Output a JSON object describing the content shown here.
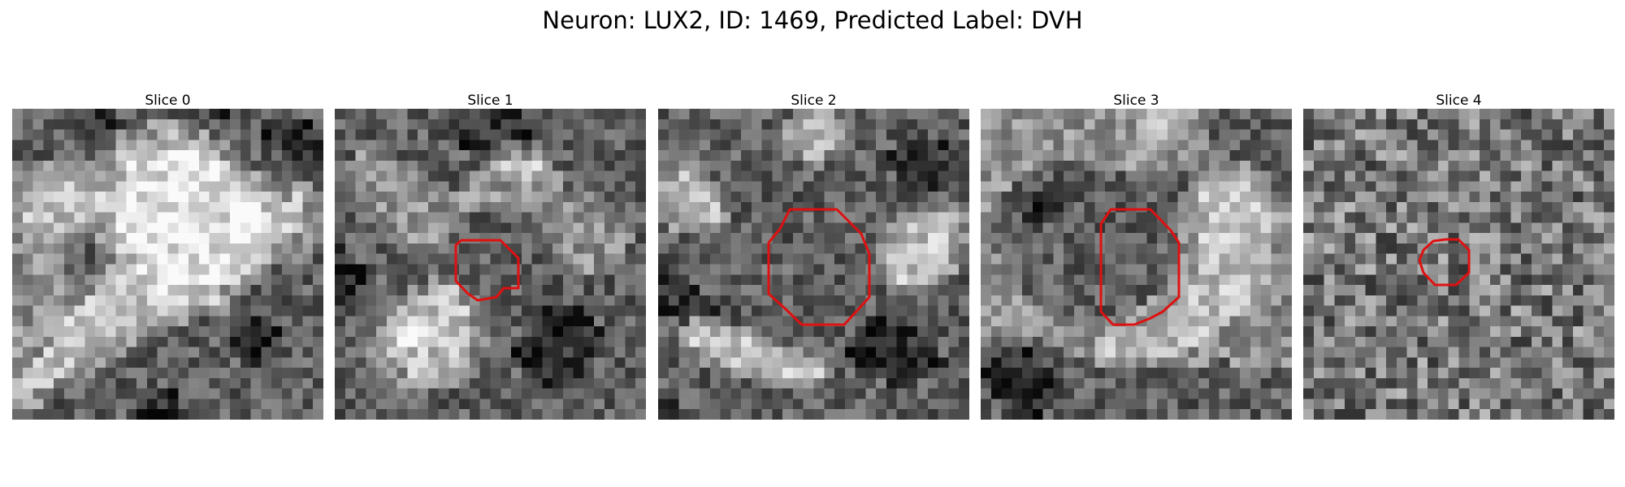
{
  "figure": {
    "title": "Neuron: LUX2, ID: 1469, Predicted Label: DVH",
    "contour_color": "#e01010",
    "colormap": "grayscale"
  },
  "panels": [
    {
      "title": "Slice 0",
      "image": "grayscale-microscopy-patch",
      "has_roi_contour": false,
      "brightness": [
        "bbbbbbbbaabbbbbbbbbaabbbbbbbbb",
        "bbbbbbbbbaabbcccbbbbbbbbaaaaab",
        "bbbbbbbbbbccccdddccbbbbbaaaaaa",
        "bbbbbbbbbbccdddddddccbbbaaaaaa",
        "bbbbbbbbbcddeeeeeeedccbbbbaaaa",
        "ccccccccccdeeeeeeeeedccbbbbbaa",
        "cccccccccddeeeeeeeeeeddcbbbbbb",
        "cccdcdcccdeeeeeeeeeeeedccccccb",
        "ccddddddddeeeeeeeeeeeeeddccdcc",
        "ccddddddddeeeeeeeeeeeeeeddddcc",
        "cdddddddddeeeeeeeeeeeeeeedddcc",
        "ccddddcbcdeeeeeeeeeeeeeeddddcc",
        "cccdccbbccdeeeeeeeeeeeeedddccc",
        "ccccbbbbbcdeeeeeeeeeeeeddccccb",
        "cccccbbbccddeeeeeeeeeedddcccbb",
        "cccccbbbcdddeeeeeeeeeddccbbbbb",
        "cccccccccddddeeeeeeeddccbbbbbb",
        "ccccccccdddddeeeedddccbbbbbbbb",
        "cccccccdddddddddddddcbbbbbbbbb",
        "ccccccddddddddddcccccbbbbbbbbb",
        "cccccddddddddccccbbbbbaabbbbbb",
        "ccccdddddddccccbbbbbbaaaaabbbb",
        "ccccdddddccccbbbbbbbaaaaaabbbb",
        "cccdddddcccbbbbbbbbbbaaaaabbbb",
        "ccdddddcccbbbbbbbbbbbbaabbbbbb",
        "cdddddccbbbbbbbbbbbbbbbbbbbbbb",
        "ddddccbbbbbbbbbbbbbbbbbbbbbbbb",
        "ddccbbbbbbbbbbaabbbbbbbbbbbbbb",
        "dccbbbbbbbbbaaaabbbbbbbbbbbbbb",
        "ccbbbbbbbbbbaaaabbbbbbbbbbbbbb"
      ]
    },
    {
      "title": "Slice 1",
      "image": "grayscale-microscopy-patch",
      "has_roi_contour": true,
      "brightness": [
        "bbbbbbbbbbbbaaaaaabbbbbbbbbbbb",
        "bbbbbbbbbbbaaaaaaaabbbbbbbbbbb",
        "bbbbbbbbbbbaaaaaaaaabbbbbbbbbb",
        "bbbbbbbbbbbbaaabbbbbbbbbbbbbbb",
        "bbcccbbbbbbbbbbcccccbbbbbbbbbb",
        "bcccccbbbbbbbbccddddcbbbbbbbbb",
        "bcccccccbbbbbcccddddccbbbbbbbb",
        "bbccccccccbbbcccccccccbbbbbbbb",
        "bbbccccccccccccccccccccccbbbbb",
        "bbbbccccccccccccccccccccccbbbb",
        "bbbbbcccccccbbbbbbbccccccccbbb",
        "bbbbbbcccccbbbbbbbbbccccccccbb",
        "bbbbbbbccccbbbbbbbbbcccccccccb",
        "abbbbbbbbbbbbbbbbbbbbcccccccbb",
        "aabbbbbbbbbbbbbbbbbbbbccccccbb",
        "aaabbbbbbbbbbbbbbbbbbbbbcccbbb",
        "aaabbbbbbcccbbbbbbbbbbbbbbbbbb",
        "aabbbbbcccddcbbbbbbbbbbbbbbbbb",
        "abbbbbcdddddccbbbbbbbbbbbbbbbb",
        "bbbbbcdddddddcbbbbbbaaaabbbbbb",
        "bbbbcddeeddddccbbbbaaaaaabbbbb",
        "bbbbcdeeeddddccbbbbaaaaaaabbbb",
        "bbbccdeeeddddccbbbaaaaaaaabbbb",
        "bbbccdddddddcccbbaaaaaaaaabbbb",
        "bbbbccddddddccbbbaaaaaaaabbbbb",
        "bbbbbccdddddcbbbbbaaaaaabbbbbb",
        "bbbbbbccccccbbbbbbbaaabbbbbbbb",
        "bbbbbbbbbbbbbbbbbbbbbbbbbbbbbb",
        "bbbbbbbbbbbbbbbbbbbbbbbbbbbbbb",
        "bbbbbbbbbbbbbbbbbbbbbbbbbbbbbb"
      ]
    },
    {
      "title": "Slice 2",
      "image": "grayscale-microscopy-patch",
      "has_roi_contour": true,
      "brightness": [
        "bbbbbbbbbbbbbccccbbbbbbbbbbbbb",
        "bbbbbbbbbbbbccdddccbbbbbbbbbbb",
        "bbbbbbbbbbbccddddccbbbbbbbbbbb",
        "bbbbbbbbbbbccddddccbbbbaaaaabb",
        "bbbbbbbbbbbbccddccbbbbaaaaaaab",
        "bcccbbbbbbbbbbccbbbbbbaaaaaaab",
        "ccddcbbbbbbbbbbbbbbbbbbaaaaabb",
        "cdddccbbbbbbbbbbbbbbbbbbaaabbb",
        "cddddccbbbbbbbbbbbbbbbbbbbbbbb",
        "cdddddcbbbbbbbbbbbbbbbbbbbbccb",
        "ccddddcbbbbbbbbbbbbbbbbccccddc",
        "bcccccbbbbbbbbbbbbbbbbccddeedc",
        "bbbbbbbbbbbbbbbbbbbbbbcdddddcc",
        "bbbbbbbbbbbbbbbbbbbbbccdddddcb",
        "abbbbbbbbbbbbbbbbbbbbcddddddcb",
        "aabbbbbbbbbbbbbbbbbbbcddddddcb",
        "aaabbbbbbbbbbbbbbbbbbccdddccbb",
        "aaaabbbbbbbbbbbbbbbbbbcccccbbb",
        "aaaaabbbbbbbbbbbbbbbbbbbbbbbbb",
        "aaaaaabbbbbbbbbbbbbbbbbbbbbbbb",
        "bbbccccbbbbbbbbbbbbbaaabbbbbbb",
        "bbcddddccbbbbbbbbbbaaaaaabbbbb",
        "bbcdddddddccbbbbbbaaaaaaaabbbb",
        "bbccdddddddddccbbbaaaaaaaaabbb",
        "bbbbcccddddddddcbbbaaaaaaaaabb",
        "bbbbbbbcccddddddcbbbaaaaaaabbb",
        "bbbbbbbbbbccccccbbbbbbaaabbbbb",
        "abbbbbbbbbbbbbbbbbbbbbbbbbbbbb",
        "aabbbbbbbbbbbbbbbbbbbbbbbbbbbb",
        "aaabbbbbbbbbbbbbbbbbbbbbbbbbbb"
      ]
    },
    {
      "title": "Slice 3",
      "image": "grayscale-microscopy-patch",
      "has_roi_contour": true,
      "brightness": [
        "ccccccccccccccccddddcccbbbbbbb",
        "cccccccccccccccdddddccbbbbbbbb",
        "cccccccccccccccddddcccbbbbbbbb",
        "ccccccccccccccccdddccccbbbbbbb",
        "ccccccccccccccccccccccccbbbbbb",
        "cccccbbbbbbcccccccccccccccbbbb",
        "ccccbbbbbbbbbbbbbbbbcccddcccbb",
        "cccbbbaaabbbbbbbbbbbcdddddccbb",
        "ccbbbaaaabbbbbbbbbbccdddeddccb",
        "cbbbaaaabbbbbbbbbbbccdddddddcc",
        "cbbbaaabbbbbbbbbbbbccddddddddc",
        "cbbbaabbbbbbbbbbbbbccdddddddcc",
        "cbbbbbbbbbbbbbbbbbbccddddddccc",
        "cbbbbbbbbbbbbbbbbbbccdddddddcc",
        "ccbbbbbbbbbbbbbbbbbccddddddddc",
        "ccbbbbbbbbbbbbbbbbcccdddddddcc",
        "cccbbbbbbbbbbbbbbbccddddddddcc",
        "ccccbbbbbbbbbbbbbcccdddddddccc",
        "cccccbbbbbbbbbbbcccdddddddcccc",
        "ccccccbbbbbbbbccccdddddddccccc",
        "cccccccccccccccccdddddddcccccc",
        "cccccccccccccddddddddddccccccc",
        "bbbbbbcccccddddddddddccccccccc",
        "bbaaabbbbccdddddddddcccccccccc",
        "baaaaabbbbbcccccccccccbbcccccc",
        "aaaaaaabbbbbbbbbbbbbbbbbbbbbbb",
        "aaaaaaaabbbbbbbbbbbbbbbbbbbbbb",
        "baaaaaaabbbbbbbbbbbbbbbbbbbbbb",
        "bbaaaaabbbbbbbbbbbbbbbbbbbbbbb",
        "bbbaaabbbbbbbbbbbbbbbbbbbbbbbb"
      ]
    },
    {
      "title": "Slice 4",
      "image": "grayscale-microscopy-patch",
      "has_roi_contour": true,
      "brightness": [
        "bbbbbbbbbbbbbbbbbbbbbbbbbbbbbb",
        "bbbbbbbbbbbbbbbbbbbbbbbbbbbbbb",
        "bbbbbbbbbbbbbbbbbbbbbbbbbbbbbb",
        "bbbbbbbbbbbbbbbbbbbbbbbbbbbbbb",
        "bbbbbbbbbbbbbbbbbbbbbbbbbbbbbb",
        "bbbbbbbbbbbbbbbbbbbbbbbbbbbbbb",
        "bbbbbbbbbbbbbbbbbbbbbbbbbbbbbb",
        "bbbbbbbbbbbbbbbbbbbbbbbbbbbbbb",
        "bbbbbbbbbbbbbbbbbbbbbbbbbbbbbb",
        "bbbbbbbbbbbbbbbbbbbbbbbbbbbbbb",
        "bbbbbbbbbbbbbbbbbbbbbbbbbbbbbb",
        "bbbbbbbbbbbbbbbbbbbbbbbbbbbbbb",
        "bbbbbbbbbbbbbbbbbbbbbbbbbbbbbb",
        "bbbbbbbbbbbbbbbbbbbbbbbbbbbbbb",
        "bbbbbbbbbbbbbbbbbbbbbbbbbbbbbb",
        "bbbbbbbbbbbbbbbbbbbbbbbbbbbbbb",
        "bbbbbbbbbbbbbbbbbbbbbbbbbbbbbb",
        "bbbbbbbbbbbbbbbbbbbbbbbbbbbbbb",
        "bbbbbbbbbbbbbbbbbbbbbbbbbbbbbb",
        "bbbbbbbbbbbbbbbbbbbbbbbbbbbbbb",
        "bbbbbbbbbbbbbbbbbbbbbbbbbbbbbb",
        "bbbbbbbbbbbbbbbbbbbbbbbbbbbbbb",
        "bbbbbbbbbbbbbbbbbbbbbbbbbbbbbb",
        "bbbbbbbbbbbbbbbbbbbbbbbbbbbbbb",
        "bbbbbbbbbbbbbbbbbbbbbbbbbbbbbb",
        "bbbbbbbbbbbbbbbbbbbbbbbbbbbbbb",
        "bbbbbbbbbbbbbbbbbbbbbbbbbbbbbb",
        "bbbbbbbbbbbbbbbbbbbbbbbbbbbbbb",
        "bbbbbbbbbbbbbbbbbbbbbbbbbbbbbb",
        "bbbbbbbbbbbbbbbbbbbbbbbbbbbbbb"
      ]
    }
  ]
}
